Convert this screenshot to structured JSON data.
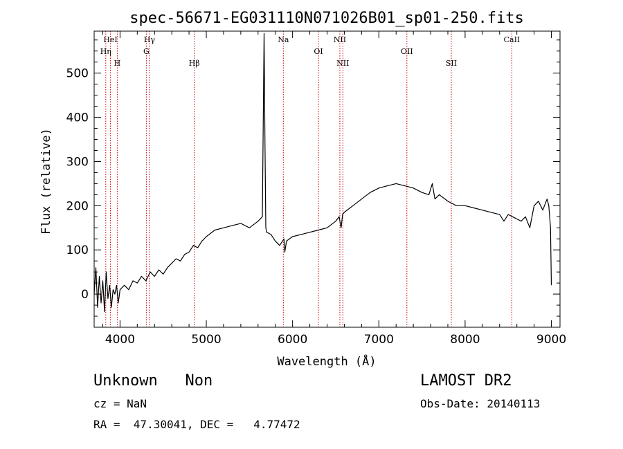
{
  "chart_data": {
    "type": "line",
    "title": "spec-56671-EG031110N071026B01_sp01-250.fits",
    "xlabel": "Wavelength (Å)",
    "ylabel": "Flux (relative)",
    "xlim": [
      3700,
      9100
    ],
    "ylim": [
      -75,
      595
    ],
    "xticks": [
      4000,
      5000,
      6000,
      7000,
      8000,
      9000
    ],
    "yticks": [
      0,
      100,
      200,
      300,
      400,
      500
    ],
    "grid": false,
    "line_color": "#000000",
    "marker_color": "#cc0000",
    "series": [
      {
        "x": [
          3700,
          3720,
          3740,
          3760,
          3780,
          3800,
          3820,
          3840,
          3860,
          3880,
          3900,
          3920,
          3940,
          3960,
          3980,
          4000,
          4050,
          4100,
          4150,
          4200,
          4250,
          4300,
          4350,
          4400,
          4450,
          4500,
          4550,
          4600,
          4650,
          4700,
          4750,
          4800,
          4850,
          4900,
          4950,
          5000,
          5100,
          5200,
          5300,
          5400,
          5500,
          5600,
          5650,
          5670,
          5680,
          5690,
          5700,
          5750,
          5800,
          5850,
          5900,
          5910,
          5930,
          6000,
          6100,
          6200,
          6300,
          6400,
          6500,
          6540,
          6563,
          6580,
          6600,
          6700,
          6800,
          6900,
          7000,
          7100,
          7200,
          7300,
          7400,
          7500,
          7580,
          7620,
          7650,
          7700,
          7800,
          7850,
          7900,
          8000,
          8100,
          8200,
          8300,
          8400,
          8450,
          8500,
          8550,
          8600,
          8650,
          8700,
          8750,
          8780,
          8800,
          8850,
          8900,
          8950,
          8970,
          8990,
          9000
        ],
        "y": [
          0,
          60,
          -30,
          40,
          -20,
          30,
          -40,
          50,
          -10,
          20,
          -30,
          10,
          0,
          20,
          -20,
          10,
          20,
          10,
          30,
          25,
          40,
          30,
          50,
          40,
          55,
          45,
          60,
          70,
          80,
          75,
          90,
          95,
          110,
          105,
          120,
          130,
          145,
          150,
          155,
          160,
          150,
          165,
          175,
          590,
          340,
          150,
          140,
          135,
          120,
          110,
          125,
          95,
          120,
          130,
          135,
          140,
          145,
          150,
          165,
          175,
          150,
          180,
          185,
          200,
          215,
          230,
          240,
          245,
          250,
          245,
          240,
          230,
          225,
          250,
          215,
          225,
          210,
          205,
          200,
          200,
          195,
          190,
          185,
          180,
          165,
          180,
          175,
          170,
          165,
          175,
          150,
          180,
          200,
          210,
          190,
          215,
          200,
          150,
          20
        ]
      }
    ],
    "spectral_lines": [
      {
        "name": "HeI",
        "x": 3889
      },
      {
        "name": "Hη",
        "x": 3835
      },
      {
        "name": "H",
        "x": 3968
      },
      {
        "name": "Hγ",
        "x": 4341
      },
      {
        "name": "G",
        "x": 4305
      },
      {
        "name": "Hβ",
        "x": 4861
      },
      {
        "name": "Na",
        "x": 5893
      },
      {
        "name": "OI",
        "x": 6300
      },
      {
        "name": "NII",
        "x": 6583
      },
      {
        "name": "NII",
        "x": 6548
      },
      {
        "name": "OII",
        "x": 7325
      },
      {
        "name": "SII",
        "x": 7840
      },
      {
        "name": "CaII",
        "x": 8542
      }
    ]
  },
  "info": {
    "class_line": "Unknown   Non",
    "survey": "LAMOST DR2",
    "cz": "cz = NaN",
    "obs_date": "Obs-Date: 20140113",
    "coords": "RA =  47.30041, DEC =   4.77472"
  }
}
